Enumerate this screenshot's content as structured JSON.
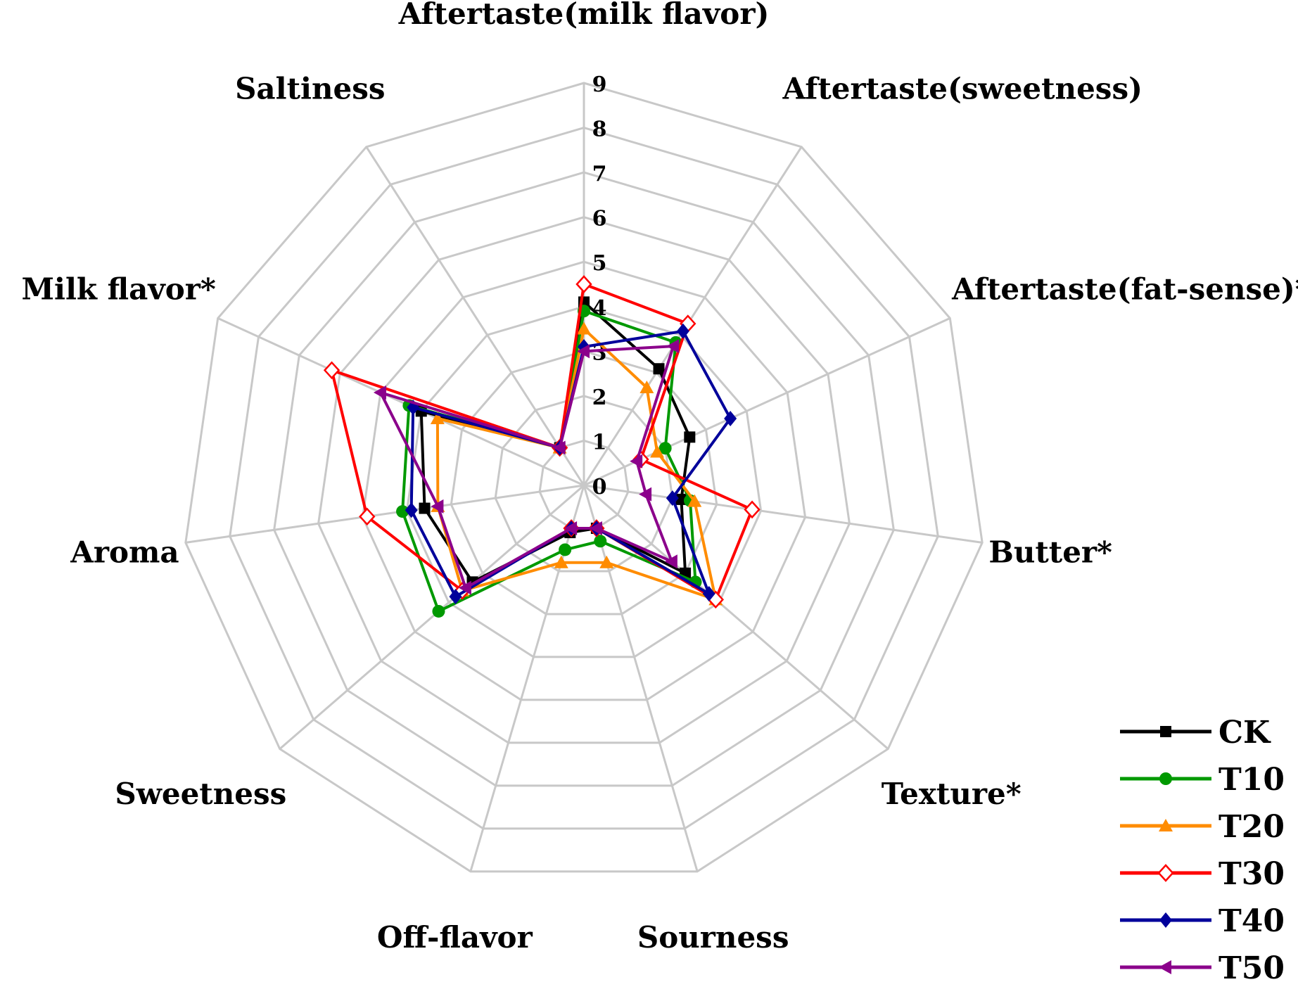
{
  "chart_data": {
    "type": "radar",
    "axes": [
      "Aftertaste(milk flavor)",
      "Aftertaste(sweetness)",
      "Aftertaste(fat-sense)*",
      "Butter*",
      "Texture*",
      "Sourness",
      "Off-flavor",
      "Sweetness",
      "Aroma",
      "Milk flavor*",
      "Saltiness"
    ],
    "ticks": [
      "0",
      "1",
      "2",
      "3",
      "4",
      "5",
      "6",
      "7",
      "8",
      "9"
    ],
    "range": [
      0,
      9
    ],
    "grid": true,
    "legend_position": "bottom-right",
    "series": [
      {
        "name": "CK",
        "color": "#000000",
        "marker": "square",
        "values": [
          4.1,
          3.1,
          2.6,
          2.2,
          3.0,
          1.0,
          1.1,
          3.3,
          3.6,
          4.0,
          1.0
        ]
      },
      {
        "name": "T10",
        "color": "#009900",
        "marker": "circle",
        "values": [
          3.9,
          3.8,
          2.0,
          2.4,
          3.3,
          1.3,
          1.5,
          4.3,
          4.1,
          4.3,
          1.0
        ]
      },
      {
        "name": "T20",
        "color": "#ff8c00",
        "marker": "triangle",
        "values": [
          3.5,
          2.6,
          1.8,
          2.5,
          3.9,
          1.8,
          1.8,
          3.6,
          3.3,
          3.6,
          1.0
        ]
      },
      {
        "name": "T30",
        "color": "#ff0000",
        "marker": "diamond-open",
        "values": [
          4.5,
          4.3,
          1.4,
          3.8,
          3.9,
          1.0,
          1.0,
          3.6,
          4.9,
          6.2,
          1.0
        ]
      },
      {
        "name": "T40",
        "color": "#00009b",
        "marker": "diamond",
        "values": [
          3.1,
          4.1,
          3.6,
          2.0,
          3.7,
          1.0,
          1.0,
          3.8,
          3.9,
          4.2,
          1.0
        ]
      },
      {
        "name": "T50",
        "color": "#8b008b",
        "marker": "triangle-left",
        "values": [
          3.0,
          3.7,
          1.3,
          1.4,
          2.6,
          1.0,
          1.0,
          3.5,
          3.3,
          5.0,
          1.0
        ]
      }
    ]
  }
}
